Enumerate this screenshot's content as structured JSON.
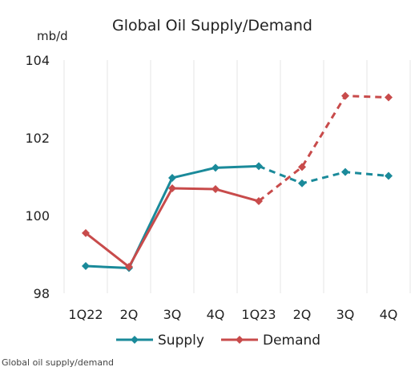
{
  "chart_data": {
    "type": "line",
    "title": "Global Oil Supply/Demand",
    "ylabel": "mb/d",
    "xlabel": "",
    "categories": [
      "1Q22",
      "2Q",
      "3Q",
      "4Q",
      "1Q23",
      "2Q",
      "3Q",
      "4Q"
    ],
    "ylim": [
      98,
      104
    ],
    "yticks": [
      98,
      100,
      102,
      104
    ],
    "grid": "vertical",
    "legend": "bottom",
    "series": [
      {
        "name": "Supply",
        "color": "#1a8a9a",
        "marker": "diamond",
        "values": [
          98.7,
          98.65,
          100.97,
          101.23,
          101.27,
          100.83,
          101.12,
          101.02
        ],
        "forecast_from_index": 4
      },
      {
        "name": "Demand",
        "color": "#c84b4b",
        "marker": "diamond",
        "values": [
          99.55,
          98.68,
          100.7,
          100.68,
          100.37,
          101.25,
          103.08,
          103.04
        ],
        "forecast_from_index": 4
      }
    ]
  },
  "caption": "Global oil supply/demand"
}
